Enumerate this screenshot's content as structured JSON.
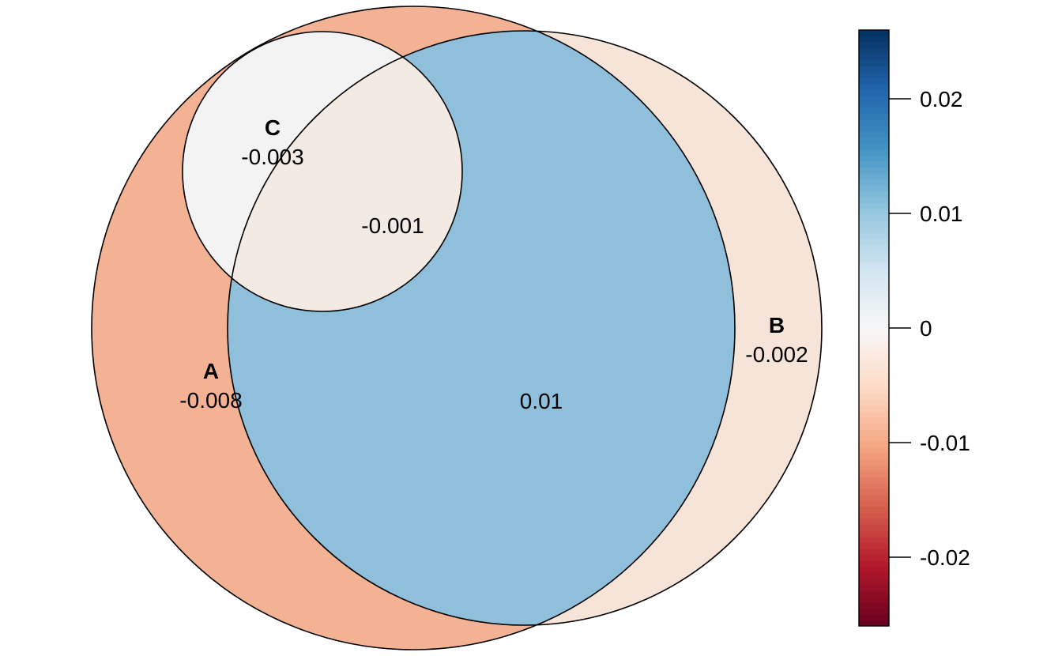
{
  "diagram": {
    "type": "euler",
    "sets": [
      {
        "id": "A",
        "label": "A"
      },
      {
        "id": "B",
        "label": "B"
      },
      {
        "id": "C",
        "label": "C"
      }
    ],
    "regions": [
      {
        "id": "A_only",
        "sets": [
          "A"
        ],
        "value": "-0.008",
        "color": "#F4B294"
      },
      {
        "id": "B_only",
        "sets": [
          "B"
        ],
        "value": "-0.002",
        "color": "#F6E4D9"
      },
      {
        "id": "C_only",
        "sets": [
          "C"
        ],
        "value": "-0.003",
        "color": "#F3F3F3"
      },
      {
        "id": "A_B",
        "sets": [
          "A",
          "B"
        ],
        "value": "0.01",
        "color": "#8FBFDA"
      },
      {
        "id": "A_B_C",
        "sets": [
          "A",
          "B",
          "C"
        ],
        "value": "-0.001",
        "color": "#F4EAE4"
      }
    ],
    "colorbar": {
      "palette": "RdBu",
      "min": -0.026,
      "max": 0.026,
      "ticks": [
        {
          "value": 0.02,
          "label": "0.02"
        },
        {
          "value": 0.01,
          "label": "0.01"
        },
        {
          "value": 0,
          "label": "0"
        },
        {
          "value": -0.01,
          "label": "-0.01"
        },
        {
          "value": -0.02,
          "label": "-0.02"
        }
      ],
      "stops": [
        {
          "t": 0.0,
          "color": "#67001F"
        },
        {
          "t": 0.1,
          "color": "#B2182B"
        },
        {
          "t": 0.2,
          "color": "#D6604D"
        },
        {
          "t": 0.3,
          "color": "#F4A582"
        },
        {
          "t": 0.4,
          "color": "#FDDBC7"
        },
        {
          "t": 0.5,
          "color": "#F7F7F7"
        },
        {
          "t": 0.6,
          "color": "#D1E5F0"
        },
        {
          "t": 0.7,
          "color": "#92C5DE"
        },
        {
          "t": 0.8,
          "color": "#4393C3"
        },
        {
          "t": 0.9,
          "color": "#2166AC"
        },
        {
          "t": 1.0,
          "color": "#053061"
        }
      ]
    }
  }
}
